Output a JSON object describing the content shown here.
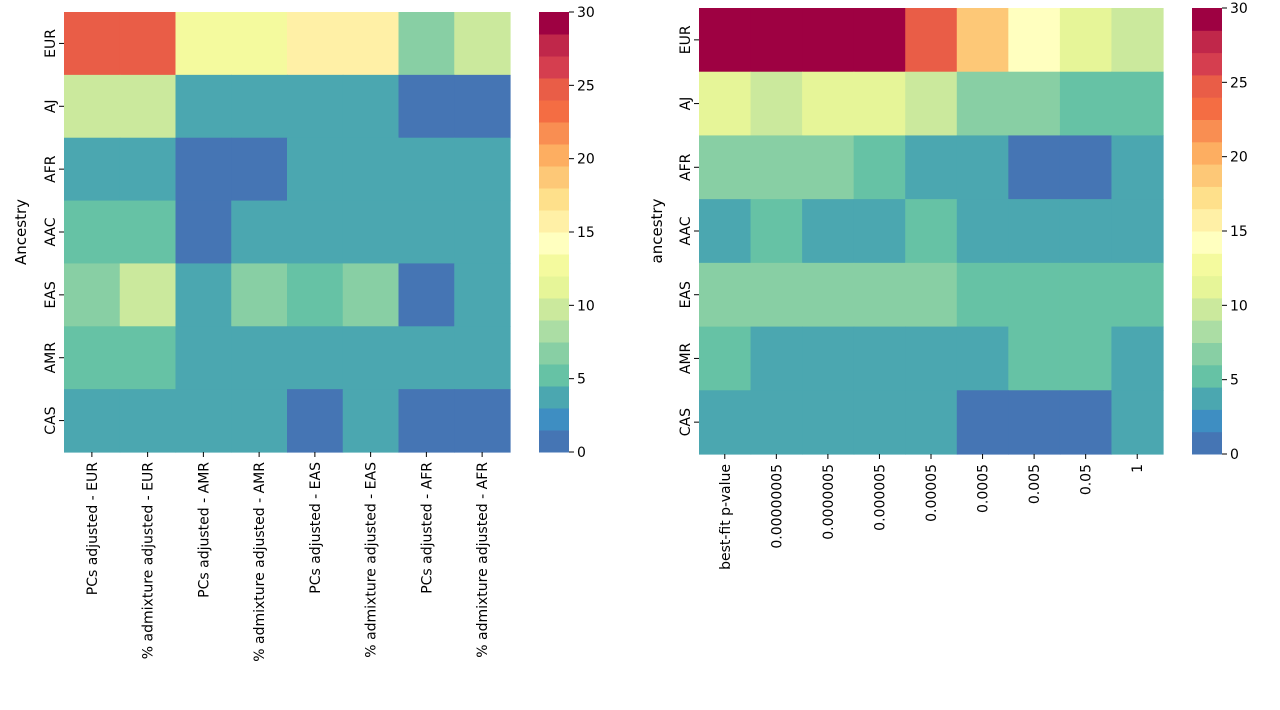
{
  "colorbar": {
    "min": 0,
    "max": 30,
    "levels": 20,
    "ticks": [
      "0",
      "5",
      "10",
      "15",
      "20",
      "25",
      "30"
    ],
    "palette": [
      "#4575b4",
      "#3e8ec2",
      "#4ba7b0",
      "#66c2a5",
      "#88cfa4",
      "#abdda4",
      "#cbe99d",
      "#e6f598",
      "#f4fa9e",
      "#ffffbf",
      "#fff0a6",
      "#fee08b",
      "#fdc877",
      "#fdae61",
      "#f98e52",
      "#f46d43",
      "#e95d47",
      "#d53e4f",
      "#c0274a",
      "#9e0142"
    ]
  },
  "chart_data": [
    {
      "type": "heatmap",
      "ylabel": "Ancestry",
      "xlabel": "",
      "y_categories": [
        "EUR",
        "AJ",
        "AFR",
        "AAC",
        "EAS",
        "AMR",
        "CAS"
      ],
      "x_categories": [
        "PCs adjusted - EUR",
        "% admixture adjusted - EUR",
        "PCs adjusted - AMR",
        "% admixture adjusted - AMR",
        "PCs adjusted - EAS",
        "% admixture adjusted - EAS",
        "PCs adjusted - AFR",
        "% admixture adjusted - AFR"
      ],
      "values": [
        [
          24,
          24,
          13,
          13,
          16,
          16,
          7,
          9
        ],
        [
          9,
          9,
          3,
          3,
          3,
          3,
          1,
          1
        ],
        [
          3,
          3,
          1,
          1,
          3,
          3,
          3,
          3
        ],
        [
          5,
          5,
          1,
          3,
          3,
          3,
          3,
          3
        ],
        [
          7,
          9,
          3,
          7,
          5,
          7,
          1,
          3
        ],
        [
          5,
          5,
          3,
          3,
          3,
          3,
          3,
          3
        ],
        [
          3,
          3,
          3,
          3,
          1,
          3,
          1,
          1
        ]
      ],
      "colorbar_range": [
        0,
        30
      ]
    },
    {
      "type": "heatmap",
      "ylabel": "ancestry",
      "xlabel": "",
      "y_categories": [
        "EUR",
        "AJ",
        "AFR",
        "AAC",
        "EAS",
        "AMR",
        "CAS"
      ],
      "x_categories": [
        "best-fit p-value",
        "0.00000005",
        "0.0000005",
        "0.000005",
        "0.00005",
        "0.0005",
        "0.005",
        "0.05",
        "1"
      ],
      "values": [
        [
          29,
          29,
          29,
          29,
          24,
          19,
          14,
          11,
          9
        ],
        [
          11,
          9,
          11,
          11,
          9,
          7,
          7,
          5,
          5
        ],
        [
          7,
          7,
          7,
          5,
          3,
          3,
          1,
          1,
          3
        ],
        [
          3,
          5,
          3,
          3,
          5,
          3,
          3,
          3,
          3
        ],
        [
          7,
          7,
          7,
          7,
          7,
          5,
          5,
          5,
          5
        ],
        [
          5,
          3,
          3,
          3,
          3,
          3,
          5,
          5,
          3
        ],
        [
          3,
          3,
          3,
          3,
          3,
          1,
          1,
          1,
          3
        ]
      ],
      "colorbar_range": [
        0,
        30
      ]
    }
  ]
}
